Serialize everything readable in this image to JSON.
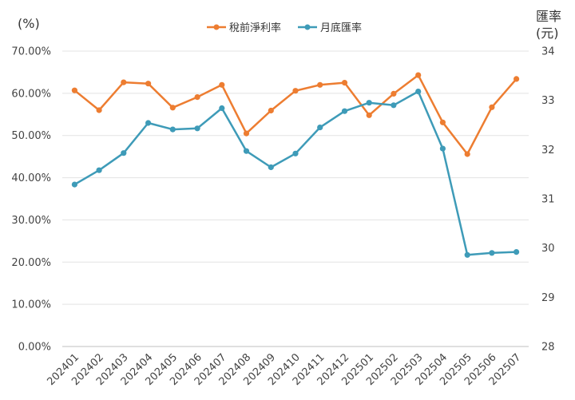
{
  "chart_data": {
    "type": "line",
    "title": "",
    "y_left_label": "(%)",
    "y_right_label_line1": "匯率",
    "y_right_label_line2": "(元)",
    "x": [
      "202401",
      "202402",
      "202403",
      "202404",
      "202405",
      "202406",
      "202407",
      "202408",
      "202409",
      "202410",
      "202411",
      "202412",
      "202501",
      "202502",
      "202503",
      "202504",
      "202505",
      "202506",
      "202507"
    ],
    "y_left_ticks": [
      "0.00%",
      "10.00%",
      "20.00%",
      "30.00%",
      "40.00%",
      "50.00%",
      "60.00%",
      "70.00%"
    ],
    "y_left_range": [
      0,
      70
    ],
    "y_right_ticks": [
      "28",
      "29",
      "30",
      "31",
      "32",
      "33",
      "34"
    ],
    "y_right_range": [
      28,
      34
    ],
    "grid": true,
    "legend_position": "top-center",
    "series": [
      {
        "name": "稅前淨利率",
        "axis": "left",
        "color": "#ED7D31",
        "values": [
          60.7,
          56.0,
          62.6,
          62.3,
          56.6,
          59.1,
          62.0,
          50.5,
          55.9,
          60.6,
          62.0,
          62.5,
          54.8,
          59.9,
          64.3,
          53.1,
          45.6,
          56.7,
          63.4
        ]
      },
      {
        "name": "月底匯率",
        "axis": "right",
        "color": "#3E9BB8",
        "values": [
          31.29,
          31.58,
          31.93,
          32.54,
          32.41,
          32.43,
          32.84,
          31.97,
          31.64,
          31.92,
          32.45,
          32.78,
          32.95,
          32.9,
          33.18,
          32.02,
          29.86,
          29.9,
          29.92
        ]
      }
    ]
  }
}
